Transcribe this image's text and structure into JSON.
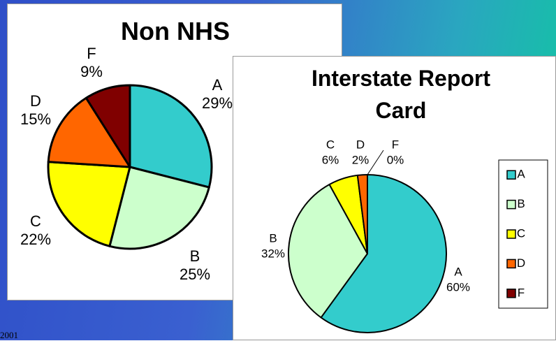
{
  "chart_data": [
    {
      "type": "pie",
      "title": "Non NHS",
      "categories": [
        "A",
        "B",
        "C",
        "D",
        "F"
      ],
      "values": [
        29,
        25,
        22,
        15,
        9
      ],
      "value_labels": [
        "29%",
        "25%",
        "22%",
        "15%",
        "9%"
      ],
      "colors": [
        "#33cccc",
        "#ccffcc",
        "#ffff00",
        "#ff6600",
        "#800000"
      ]
    },
    {
      "type": "pie",
      "title": "Interstate Report Card",
      "categories": [
        "A",
        "B",
        "C",
        "D",
        "F"
      ],
      "values": [
        60,
        32,
        6,
        2,
        0
      ],
      "value_labels": [
        "60%",
        "32%",
        "6%",
        "2%",
        "0%"
      ],
      "colors": [
        "#33cccc",
        "#ccffcc",
        "#ffff00",
        "#ff6600",
        "#800000"
      ],
      "legend": "right"
    }
  ],
  "footer": "2001"
}
